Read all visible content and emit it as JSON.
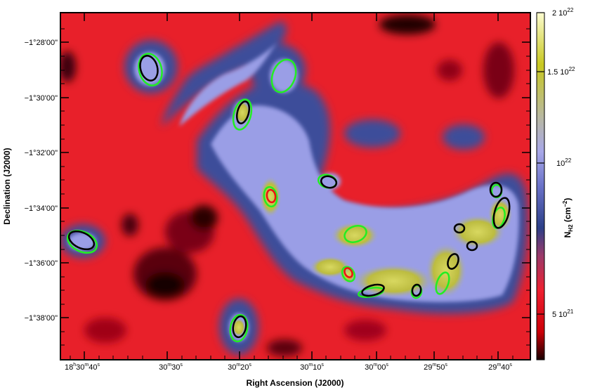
{
  "figure": {
    "xlabel": "Right Ascension (J2000)",
    "ylabel": "Declination (J2000)",
    "colorbar_label": "N",
    "colorbar_label_sub": "H2",
    "colorbar_label_unit": "(cm",
    "colorbar_label_unit_exp": "−2",
    "colorbar_label_unit_close": ")"
  },
  "x_ticks": [
    {
      "main": "18",
      "sup1": "h",
      "mid": "30",
      "sup2": "m",
      "end": "40",
      "sup3": "s"
    },
    {
      "main": "",
      "sup1": "",
      "mid": "30",
      "sup2": "m",
      "end": "30",
      "sup3": "s"
    },
    {
      "main": "",
      "sup1": "",
      "mid": "30",
      "sup2": "m",
      "end": "20",
      "sup3": "s"
    },
    {
      "main": "",
      "sup1": "",
      "mid": "30",
      "sup2": "m",
      "end": "10",
      "sup3": "s"
    },
    {
      "main": "",
      "sup1": "",
      "mid": "30",
      "sup2": "m",
      "end": "00",
      "sup3": "s"
    },
    {
      "main": "",
      "sup1": "",
      "mid": "29",
      "sup2": "m",
      "end": "50",
      "sup3": "s"
    },
    {
      "main": "",
      "sup1": "",
      "mid": "29",
      "sup2": "m",
      "end": "40",
      "sup3": "s"
    }
  ],
  "y_ticks": [
    "−1°28'00\"",
    "−1°30'00\"",
    "−1°32'00\"",
    "−1°34'00\"",
    "−1°36'00\"",
    "−1°38'00\""
  ],
  "colorbar_ticks": [
    {
      "base": "2 10",
      "exp": "22"
    },
    {
      "base": "1.5 10",
      "exp": "22"
    },
    {
      "base": "10",
      "exp": "22"
    },
    {
      "base": "5 10",
      "exp": "21"
    }
  ],
  "colors": {
    "background_red": "#e8202a",
    "low_dark": "#1a0000",
    "mid_blue": "#2c3f88",
    "filament_lavender": "#9a9ee6",
    "peak_yellow": "#c8c820",
    "contour_green": "#22ee22",
    "contour_black": "#000000",
    "contour_red": "#ee1111"
  },
  "markers": {
    "green_ellipses": 21,
    "black_ellipses": 19,
    "red_ellipses": 2
  }
}
